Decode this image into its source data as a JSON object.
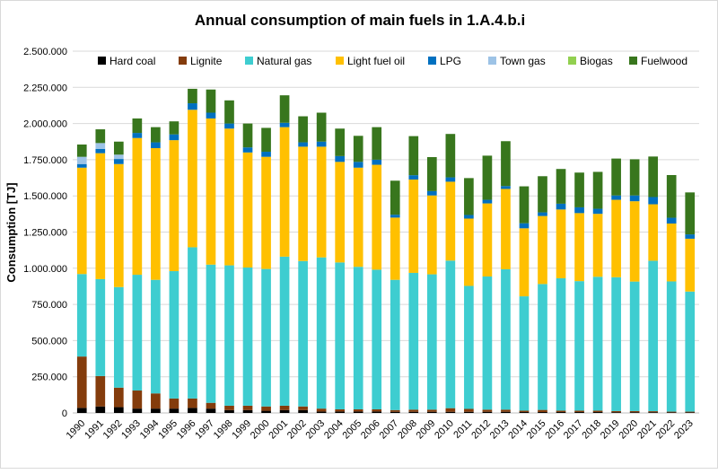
{
  "chart_data": {
    "type": "stacked-bar",
    "title": "Annual consumption of main fuels in 1.A.4.b.i",
    "xlabel": "",
    "ylabel": "Consumption [TJ]",
    "ylim": [
      0,
      2500000
    ],
    "y_ticks": [
      0,
      250000,
      500000,
      750000,
      1000000,
      1250000,
      1500000,
      1750000,
      2000000,
      2250000,
      2500000
    ],
    "y_tick_labels": [
      "0",
      "250.000",
      "500.000",
      "750.000",
      "1.000.000",
      "1.250.000",
      "1.500.000",
      "1.750.000",
      "2.000.000",
      "2.250.000",
      "2.500.000"
    ],
    "grid": true,
    "legend_position": "top",
    "categories": [
      "1990",
      "1991",
      "1992",
      "1993",
      "1994",
      "1995",
      "1996",
      "1997",
      "1998",
      "1999",
      "2000",
      "2001",
      "2002",
      "2003",
      "2004",
      "2005",
      "2006",
      "2007",
      "2008",
      "2009",
      "2010",
      "2011",
      "2012",
      "2013",
      "2014",
      "2015",
      "2016",
      "2017",
      "2018",
      "2019",
      "2020",
      "2021",
      "2022",
      "2023"
    ],
    "series": [
      {
        "name": "Hard coal",
        "color": "#000000",
        "values": [
          35000,
          45000,
          40000,
          30000,
          30000,
          30000,
          35000,
          30000,
          20000,
          20000,
          15000,
          20000,
          20000,
          10000,
          10000,
          10000,
          10000,
          8000,
          8000,
          8000,
          8000,
          8000,
          8000,
          8000,
          6000,
          6000,
          6000,
          6000,
          6000,
          5000,
          5000,
          5000,
          4000,
          4000
        ]
      },
      {
        "name": "Lignite",
        "color": "#843C0C",
        "values": [
          355000,
          210000,
          135000,
          125000,
          105000,
          70000,
          65000,
          40000,
          30000,
          30000,
          30000,
          30000,
          25000,
          20000,
          15000,
          15000,
          15000,
          12000,
          15000,
          15000,
          25000,
          20000,
          15000,
          15000,
          10000,
          15000,
          10000,
          10000,
          10000,
          8000,
          8000,
          7000,
          5000,
          5000
        ]
      },
      {
        "name": "Natural gas",
        "color": "#3ECDD0",
        "values": [
          570000,
          670000,
          695000,
          800000,
          785000,
          880000,
          1045000,
          955000,
          970000,
          955000,
          950000,
          1030000,
          1005000,
          1045000,
          1015000,
          985000,
          965000,
          900000,
          945000,
          935000,
          1020000,
          850000,
          920000,
          970000,
          790000,
          870000,
          915000,
          895000,
          925000,
          925000,
          895000,
          1040000,
          900000,
          830000
        ]
      },
      {
        "name": "Light fuel oil",
        "color": "#FFC000",
        "values": [
          735000,
          870000,
          850000,
          945000,
          910000,
          905000,
          950000,
          1010000,
          945000,
          795000,
          775000,
          895000,
          790000,
          765000,
          695000,
          685000,
          725000,
          430000,
          645000,
          545000,
          545000,
          465000,
          505000,
          555000,
          470000,
          470000,
          475000,
          470000,
          435000,
          535000,
          555000,
          390000,
          400000,
          365000
        ]
      },
      {
        "name": "LPG",
        "color": "#0070C0",
        "values": [
          25000,
          30000,
          35000,
          35000,
          40000,
          40000,
          45000,
          40000,
          35000,
          35000,
          35000,
          30000,
          30000,
          35000,
          40000,
          40000,
          35000,
          20000,
          30000,
          30000,
          30000,
          25000,
          25000,
          20000,
          35000,
          25000,
          40000,
          40000,
          35000,
          30000,
          40000,
          50000,
          40000,
          30000
        ]
      },
      {
        "name": "Town gas",
        "color": "#9DC3E6",
        "values": [
          50000,
          40000,
          30000,
          0,
          0,
          0,
          0,
          0,
          0,
          0,
          0,
          0,
          0,
          0,
          0,
          0,
          0,
          0,
          0,
          0,
          0,
          0,
          0,
          0,
          0,
          0,
          0,
          0,
          0,
          0,
          0,
          0,
          0,
          0
        ]
      },
      {
        "name": "Biogas",
        "color": "#92D050",
        "values": [
          0,
          0,
          0,
          0,
          0,
          0,
          0,
          0,
          0,
          0,
          0,
          0,
          0,
          0,
          0,
          0,
          0,
          0,
          0,
          0,
          0,
          0,
          0,
          0,
          0,
          0,
          0,
          0,
          0,
          0,
          0,
          0,
          0,
          0
        ]
      },
      {
        "name": "Fuelwood",
        "color": "#38761D",
        "values": [
          85000,
          95000,
          90000,
          100000,
          105000,
          90000,
          100000,
          160000,
          160000,
          165000,
          165000,
          190000,
          180000,
          200000,
          190000,
          180000,
          225000,
          235000,
          270000,
          235000,
          300000,
          255000,
          305000,
          310000,
          255000,
          250000,
          240000,
          240000,
          255000,
          255000,
          250000,
          280000,
          295000,
          290000
        ]
      }
    ]
  }
}
